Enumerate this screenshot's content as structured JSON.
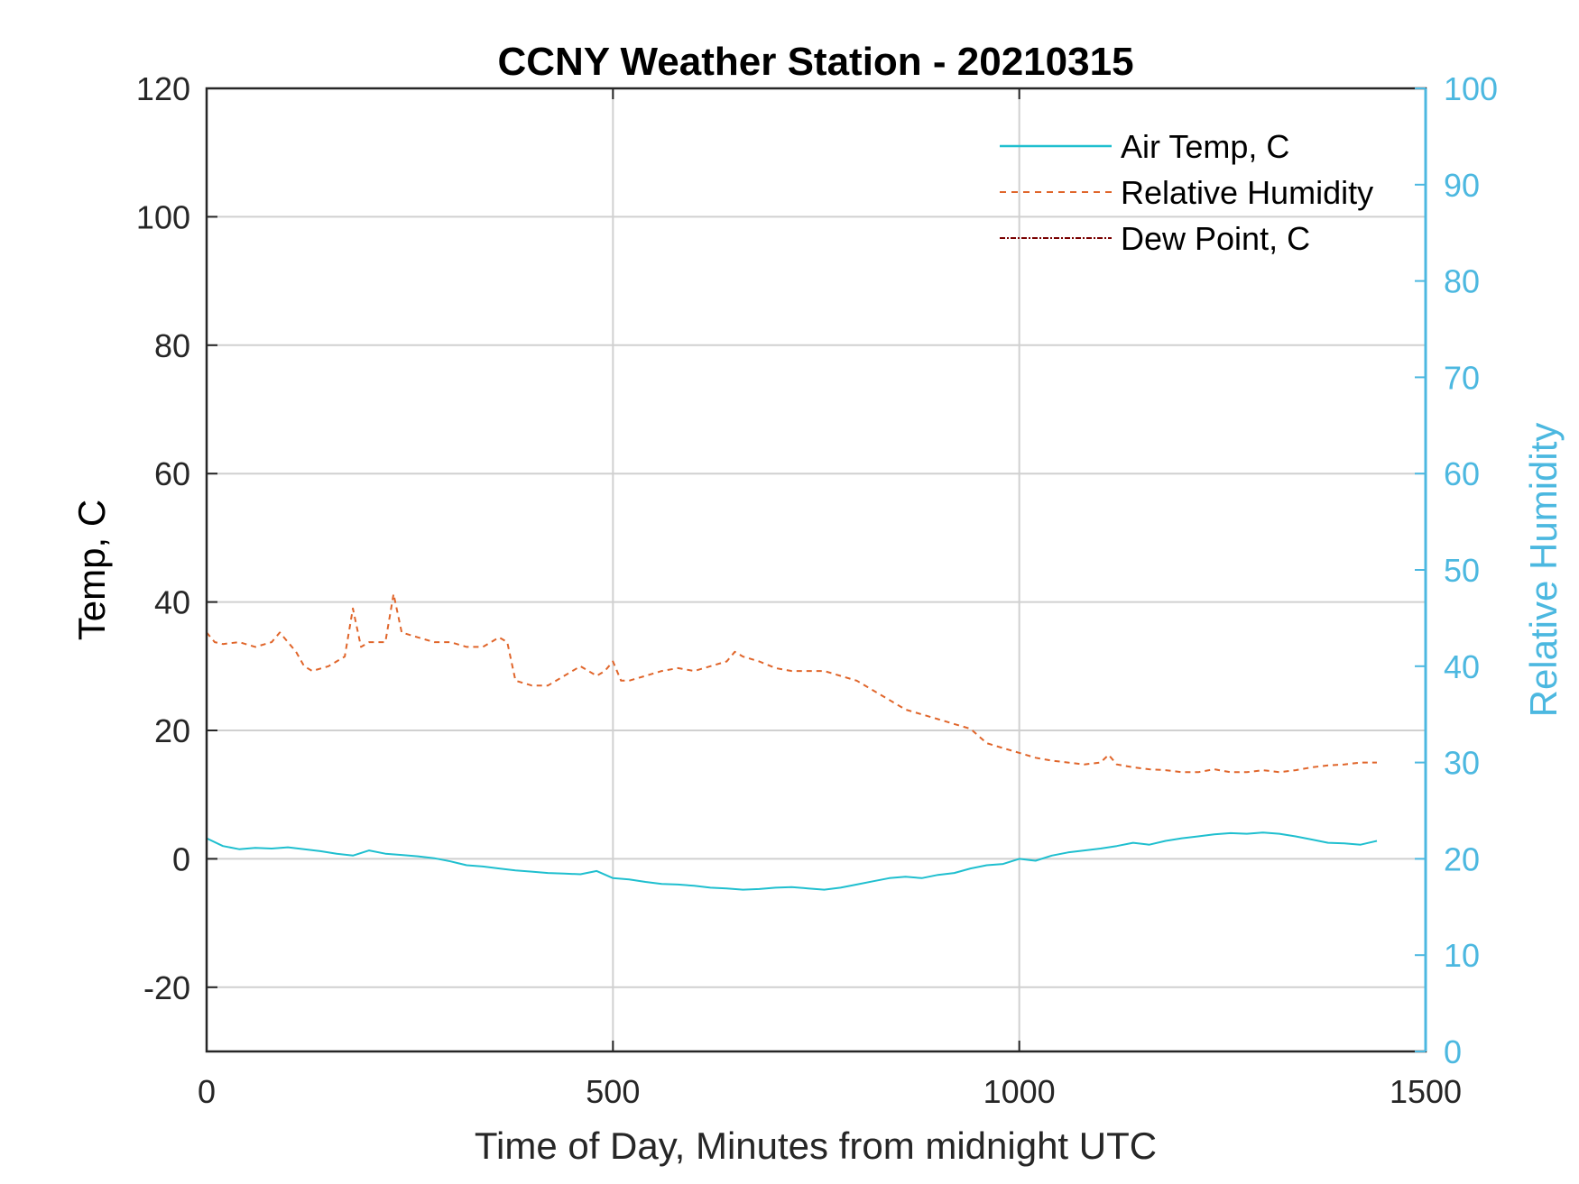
{
  "chart_data": {
    "type": "line",
    "title": "CCNY Weather Station - 20210315",
    "xlabel": "Time of Day, Minutes from midnight UTC",
    "ylabel": "Temp, C",
    "y2label": "Relative Humidity",
    "xlim": [
      0,
      1500
    ],
    "ylim": [
      -30,
      120
    ],
    "y2lim": [
      0,
      100
    ],
    "xticks": [
      "0",
      "500",
      "1000",
      "1500"
    ],
    "yticks": [
      "-20",
      "0",
      "20",
      "40",
      "60",
      "80",
      "100",
      "120"
    ],
    "y2ticks": [
      "0",
      "10",
      "20",
      "30",
      "40",
      "50",
      "60",
      "70",
      "80",
      "90",
      "100"
    ],
    "grid": true,
    "legend_position": "top-right",
    "colors": {
      "air_temp": "#1fbfcf",
      "humidity": "#e0652a",
      "dew_point": "#7a0000",
      "right_axis": "#4cb8e0"
    },
    "series": [
      {
        "name": "Air Temp, C",
        "axis": "left",
        "style": "solid",
        "x": [
          0,
          20,
          40,
          60,
          80,
          100,
          120,
          140,
          160,
          180,
          200,
          220,
          240,
          260,
          280,
          300,
          320,
          340,
          360,
          380,
          400,
          420,
          440,
          460,
          480,
          500,
          520,
          540,
          560,
          580,
          600,
          620,
          640,
          660,
          680,
          700,
          720,
          740,
          760,
          780,
          800,
          820,
          840,
          860,
          880,
          900,
          920,
          940,
          960,
          980,
          1000,
          1020,
          1040,
          1060,
          1080,
          1100,
          1120,
          1140,
          1160,
          1180,
          1200,
          1220,
          1240,
          1260,
          1280,
          1300,
          1320,
          1340,
          1360,
          1380,
          1400,
          1420,
          1440
        ],
        "values": [
          3.2,
          2.0,
          1.5,
          1.7,
          1.6,
          1.8,
          1.5,
          1.2,
          0.8,
          0.5,
          1.3,
          0.8,
          0.6,
          0.4,
          0.1,
          -0.4,
          -1.0,
          -1.2,
          -1.5,
          -1.8,
          -2.0,
          -2.2,
          -2.3,
          -2.4,
          -1.9,
          -3.0,
          -3.2,
          -3.6,
          -3.9,
          -4.0,
          -4.2,
          -4.5,
          -4.6,
          -4.8,
          -4.7,
          -4.5,
          -4.4,
          -4.6,
          -4.8,
          -4.5,
          -4.0,
          -3.5,
          -3.0,
          -2.8,
          -3.0,
          -2.5,
          -2.2,
          -1.5,
          -1.0,
          -0.8,
          0.0,
          -0.3,
          0.5,
          1.0,
          1.3,
          1.6,
          2.0,
          2.5,
          2.2,
          2.8,
          3.2,
          3.5,
          3.8,
          4.0,
          3.9,
          4.1,
          3.9,
          3.5,
          3.0,
          2.5,
          2.4,
          2.2,
          2.8
        ]
      },
      {
        "name": "Relative Humidity",
        "axis": "right",
        "style": "dashed",
        "x": [
          0,
          10,
          20,
          40,
          60,
          80,
          90,
          100,
          110,
          120,
          130,
          150,
          170,
          180,
          190,
          200,
          220,
          230,
          240,
          260,
          280,
          300,
          320,
          340,
          360,
          370,
          380,
          400,
          420,
          440,
          460,
          480,
          490,
          500,
          510,
          520,
          540,
          560,
          580,
          600,
          620,
          640,
          650,
          660,
          680,
          700,
          720,
          740,
          760,
          780,
          800,
          820,
          840,
          860,
          880,
          900,
          920,
          940,
          960,
          980,
          1000,
          1020,
          1040,
          1060,
          1080,
          1100,
          1110,
          1120,
          1140,
          1160,
          1180,
          1200,
          1220,
          1240,
          1260,
          1280,
          1300,
          1320,
          1340,
          1360,
          1380,
          1400,
          1420,
          1440
        ],
        "values": [
          43.5,
          42.5,
          42.3,
          42.5,
          42.0,
          42.5,
          43.5,
          42.5,
          41.5,
          40.0,
          39.5,
          40.0,
          41.0,
          46.0,
          42.0,
          42.5,
          42.5,
          47.5,
          43.5,
          43.0,
          42.5,
          42.5,
          42.0,
          42.0,
          43.0,
          42.5,
          38.5,
          38.0,
          38.0,
          39.0,
          40.0,
          39.0,
          39.5,
          40.5,
          38.5,
          38.5,
          39.0,
          39.5,
          39.8,
          39.5,
          40.0,
          40.5,
          41.5,
          41.0,
          40.5,
          39.8,
          39.5,
          39.5,
          39.5,
          39.0,
          38.5,
          37.5,
          36.5,
          35.5,
          35.0,
          34.5,
          34.0,
          33.5,
          32.0,
          31.5,
          31.0,
          30.5,
          30.2,
          30.0,
          29.8,
          30.0,
          30.8,
          29.8,
          29.5,
          29.3,
          29.2,
          29.0,
          29.0,
          29.3,
          29.0,
          29.0,
          29.2,
          29.0,
          29.2,
          29.5,
          29.7,
          29.8,
          30.0,
          30.0
        ]
      },
      {
        "name": "Dew Point, C",
        "axis": "left",
        "style": "dash-dot",
        "x": [],
        "values": []
      }
    ]
  }
}
